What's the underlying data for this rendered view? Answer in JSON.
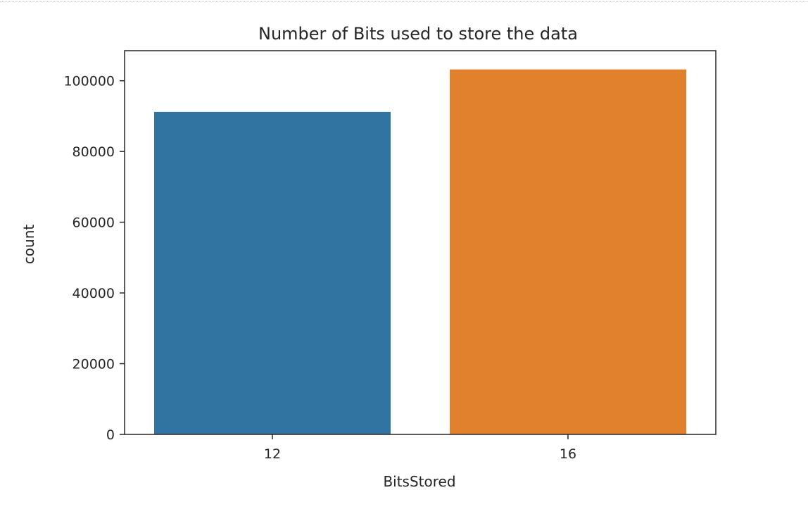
{
  "chart_data": {
    "type": "bar",
    "title": "Number of Bits used to store the data",
    "xlabel": "BitsStored",
    "ylabel": "count",
    "categories": [
      "12",
      "16"
    ],
    "values": [
      91200,
      103200
    ],
    "colors": [
      "#3274a1",
      "#e1812c"
    ],
    "ylim": [
      0,
      108500
    ],
    "yticks": [
      0,
      20000,
      40000,
      60000,
      80000,
      100000
    ],
    "ytick_labels": [
      "0",
      "20000",
      "40000",
      "60000",
      "80000",
      "100000"
    ],
    "grid": false,
    "legend": "none"
  }
}
